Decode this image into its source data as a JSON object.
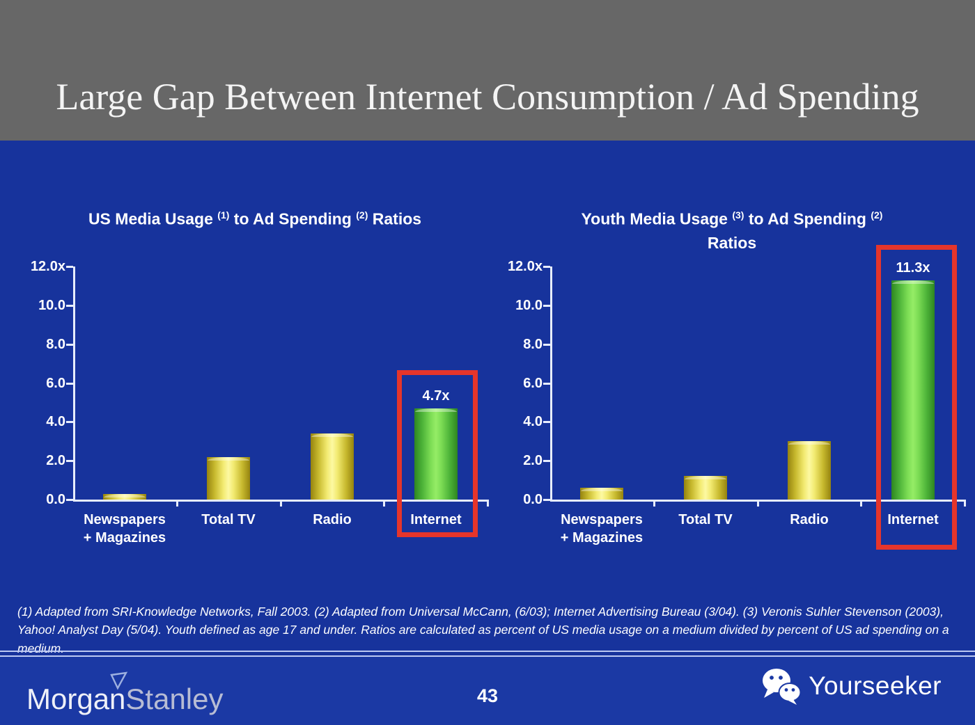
{
  "slide": {
    "title": "Large Gap Between Internet Consumption / Ad Spending",
    "page_number": "43",
    "footnote": "(1) Adapted from SRI-Knowledge Networks, Fall 2003.  (2) Adapted from Universal McCann, (6/03); Internet Advertising Bureau (3/04). (3) Veronis Suhler Stevenson (2003), Yahoo! Analyst Day (5/04).  Youth defined as age 17 and under.  Ratios are calculated as percent of US media usage on a medium divided by percent of US ad spending on a medium."
  },
  "branding": {
    "logo_part1": "Morgan",
    "logo_part2": "Stanley",
    "watermark_label": "Yourseeker",
    "watermark_icon": "wechat-icon"
  },
  "colors": {
    "header_bg": "#676767",
    "slide_bg": "#17339c",
    "strip_bg": "#1b39a4",
    "axis": "#e7edfd",
    "text": "#ffffff",
    "separator": "#bcc9f2",
    "highlight_red": "#e5352b",
    "bar_yellow_mid": "#fdf9a2",
    "bar_yellow_edge": "#95830f",
    "bar_green_mid": "#95ec66",
    "bar_green_edge": "#2e8620",
    "logo_primary": "#eef0f8",
    "logo_secondary": "#b7bcd4"
  },
  "chart_data": [
    {
      "type": "bar",
      "title_lines": [
        [
          {
            "text": "US Media Usage "
          },
          {
            "text": "(1)",
            "sup": true
          },
          {
            "text": " to Ad Spending "
          },
          {
            "text": "(2)",
            "sup": true
          },
          {
            "text": " Ratios"
          }
        ]
      ],
      "categories": [
        "Newspapers\n+ Magazines",
        "Total TV",
        "Radio",
        "Internet"
      ],
      "values": [
        0.3,
        2.2,
        3.4,
        4.7
      ],
      "bar_styles": [
        "yellow",
        "yellow",
        "yellow",
        "green"
      ],
      "value_labels": [
        null,
        null,
        null,
        "4.7x"
      ],
      "highlighted_index": 3,
      "ylim": [
        0,
        12
      ],
      "ytick_labels": [
        "12.0x",
        "10.0",
        "8.0",
        "6.0",
        "4.0",
        "2.0",
        "0.0"
      ],
      "grid": false,
      "legend": null
    },
    {
      "type": "bar",
      "title_lines": [
        [
          {
            "text": "Youth Media Usage "
          },
          {
            "text": "(3)",
            "sup": true
          },
          {
            "text": " to Ad Spending "
          },
          {
            "text": "(2)",
            "sup": true
          }
        ],
        [
          {
            "text": "Ratios"
          }
        ]
      ],
      "categories": [
        "Newspapers\n+ Magazines",
        "Total TV",
        "Radio",
        "Internet"
      ],
      "values": [
        0.6,
        1.2,
        3.0,
        11.3
      ],
      "bar_styles": [
        "yellow",
        "yellow",
        "yellow",
        "green"
      ],
      "value_labels": [
        null,
        null,
        null,
        "11.3x"
      ],
      "highlighted_index": 3,
      "ylim": [
        0,
        12
      ],
      "ytick_labels": [
        "12.0x",
        "10.0",
        "8.0",
        "6.0",
        "4.0",
        "2.0",
        "0.0"
      ],
      "grid": false,
      "legend": null
    }
  ]
}
